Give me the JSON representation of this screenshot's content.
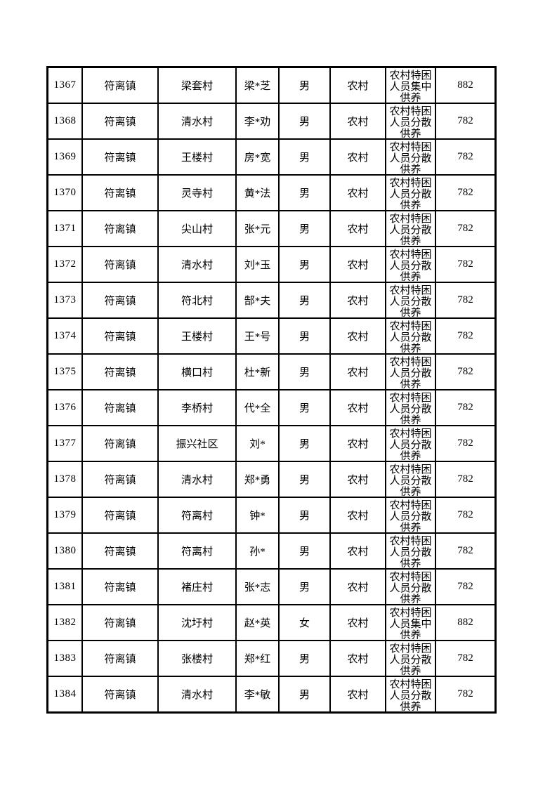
{
  "colors": {
    "background": "#ffffff",
    "border": "#000000",
    "text": "#000000"
  },
  "table": {
    "rows": [
      {
        "index": "1367",
        "town": "符离镇",
        "village": "梁套村",
        "name": "梁*芝",
        "gender": "男",
        "residence": "农村",
        "category": "农村特困人员集中供养",
        "amount": "882"
      },
      {
        "index": "1368",
        "town": "符离镇",
        "village": "清水村",
        "name": "李*劝",
        "gender": "男",
        "residence": "农村",
        "category": "农村特困人员分散供养",
        "amount": "782"
      },
      {
        "index": "1369",
        "town": "符离镇",
        "village": "王楼村",
        "name": "房*宽",
        "gender": "男",
        "residence": "农村",
        "category": "农村特困人员分散供养",
        "amount": "782"
      },
      {
        "index": "1370",
        "town": "符离镇",
        "village": "灵寺村",
        "name": "黄*法",
        "gender": "男",
        "residence": "农村",
        "category": "农村特困人员分散供养",
        "amount": "782"
      },
      {
        "index": "1371",
        "town": "符离镇",
        "village": "尖山村",
        "name": "张*元",
        "gender": "男",
        "residence": "农村",
        "category": "农村特困人员分散供养",
        "amount": "782"
      },
      {
        "index": "1372",
        "town": "符离镇",
        "village": "清水村",
        "name": "刘*玉",
        "gender": "男",
        "residence": "农村",
        "category": "农村特困人员分散供养",
        "amount": "782"
      },
      {
        "index": "1373",
        "town": "符离镇",
        "village": "符北村",
        "name": "郜*夫",
        "gender": "男",
        "residence": "农村",
        "category": "农村特困人员分散供养",
        "amount": "782"
      },
      {
        "index": "1374",
        "town": "符离镇",
        "village": "王楼村",
        "name": "王*号",
        "gender": "男",
        "residence": "农村",
        "category": "农村特困人员分散供养",
        "amount": "782"
      },
      {
        "index": "1375",
        "town": "符离镇",
        "village": "横口村",
        "name": "杜*新",
        "gender": "男",
        "residence": "农村",
        "category": "农村特困人员分散供养",
        "amount": "782"
      },
      {
        "index": "1376",
        "town": "符离镇",
        "village": "李桥村",
        "name": "代*全",
        "gender": "男",
        "residence": "农村",
        "category": "农村特困人员分散供养",
        "amount": "782"
      },
      {
        "index": "1377",
        "town": "符离镇",
        "village": "振兴社区",
        "name": "刘*",
        "gender": "男",
        "residence": "农村",
        "category": "农村特困人员分散供养",
        "amount": "782"
      },
      {
        "index": "1378",
        "town": "符离镇",
        "village": "清水村",
        "name": "郑*勇",
        "gender": "男",
        "residence": "农村",
        "category": "农村特困人员分散供养",
        "amount": "782"
      },
      {
        "index": "1379",
        "town": "符离镇",
        "village": "符离村",
        "name": "钟*",
        "gender": "男",
        "residence": "农村",
        "category": "农村特困人员分散供养",
        "amount": "782"
      },
      {
        "index": "1380",
        "town": "符离镇",
        "village": "符离村",
        "name": "孙*",
        "gender": "男",
        "residence": "农村",
        "category": "农村特困人员分散供养",
        "amount": "782"
      },
      {
        "index": "1381",
        "town": "符离镇",
        "village": "褚庄村",
        "name": "张*志",
        "gender": "男",
        "residence": "农村",
        "category": "农村特困人员分散供养",
        "amount": "782"
      },
      {
        "index": "1382",
        "town": "符离镇",
        "village": "沈圩村",
        "name": "赵*英",
        "gender": "女",
        "residence": "农村",
        "category": "农村特困人员集中供养",
        "amount": "882"
      },
      {
        "index": "1383",
        "town": "符离镇",
        "village": "张楼村",
        "name": "郑*红",
        "gender": "男",
        "residence": "农村",
        "category": "农村特困人员分散供养",
        "amount": "782"
      },
      {
        "index": "1384",
        "town": "符离镇",
        "village": "清水村",
        "name": "李*敏",
        "gender": "男",
        "residence": "农村",
        "category": "农村特困人员分散供养",
        "amount": "782"
      }
    ]
  }
}
